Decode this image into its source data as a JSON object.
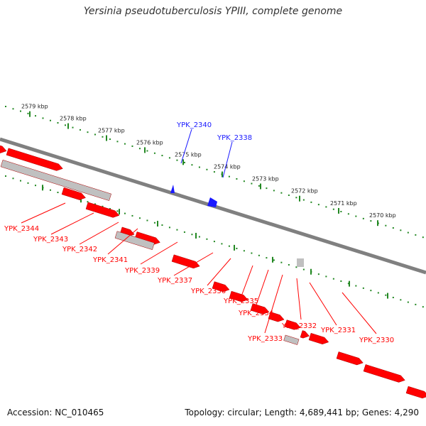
{
  "title": "Yersinia pseudotuberculosis YPIII, complete genome",
  "footer": {
    "accession": "Accession: NC_010465",
    "topology": "Topology: circular; Length: 4,689,441 bp; Genes: 4,290"
  },
  "colors": {
    "forward_gene": "#ff0000",
    "reverse_gene": "#1a1aff",
    "other_feature": "#c0c0c0",
    "backbone": "#808080",
    "ticks": "#228822"
  },
  "ticks": [
    "2579 kbp",
    "2578 kbp",
    "2577 kbp",
    "2576 kbp",
    "2575 kbp",
    "2574 kbp",
    "2573 kbp",
    "2572 kbp",
    "2571 kbp",
    "2570 kbp"
  ],
  "top_genes": [
    "YPK_2340",
    "YPK_2338"
  ],
  "bottom_genes": [
    "YPK_2344",
    "YPK_2343",
    "YPK_2342",
    "YPK_2341",
    "YPK_2339",
    "YPK_2337",
    "YPK_2336",
    "YPK_2335",
    "YPK_2334",
    "YPK_2333",
    "YPK_2332",
    "YPK_2331",
    "YPK_2330"
  ]
}
